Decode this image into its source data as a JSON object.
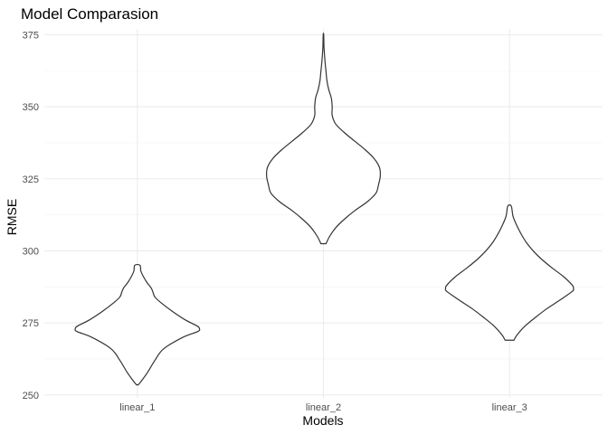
{
  "chart_data": {
    "type": "violin",
    "title": "Model Comparasion",
    "xlabel": "Models",
    "ylabel": "RMSE",
    "ylim": [
      249,
      377
    ],
    "yticks": [
      250,
      275,
      300,
      325,
      350,
      375
    ],
    "categories": [
      "linear_1",
      "linear_2",
      "linear_3"
    ],
    "grid": true,
    "legend": "none",
    "colors": {
      "outline": "#333333",
      "fill": "#ffffff",
      "grid": "#ebebeb"
    },
    "series": [
      {
        "category": "linear_1",
        "profile": [
          [
            253.5,
            0.01
          ],
          [
            255,
            0.05
          ],
          [
            258,
            0.12
          ],
          [
            262,
            0.2
          ],
          [
            266,
            0.3
          ],
          [
            270,
            0.52
          ],
          [
            272,
            0.69
          ],
          [
            273,
            0.71
          ],
          [
            274,
            0.68
          ],
          [
            276,
            0.55
          ],
          [
            279,
            0.4
          ],
          [
            282,
            0.27
          ],
          [
            284,
            0.2
          ],
          [
            285.5,
            0.18
          ],
          [
            287,
            0.16
          ],
          [
            289,
            0.11
          ],
          [
            291,
            0.07
          ],
          [
            293,
            0.04
          ],
          [
            295,
            0.03
          ]
        ]
      },
      {
        "category": "linear_2",
        "profile": [
          [
            302.5,
            0.03
          ],
          [
            305,
            0.07
          ],
          [
            308,
            0.14
          ],
          [
            311,
            0.24
          ],
          [
            314,
            0.36
          ],
          [
            317,
            0.5
          ],
          [
            320,
            0.6
          ],
          [
            323,
            0.63
          ],
          [
            326,
            0.65
          ],
          [
            329,
            0.64
          ],
          [
            332,
            0.58
          ],
          [
            335,
            0.48
          ],
          [
            338,
            0.36
          ],
          [
            341,
            0.24
          ],
          [
            344,
            0.14
          ],
          [
            347,
            0.1
          ],
          [
            350,
            0.1
          ],
          [
            353,
            0.09
          ],
          [
            356,
            0.06
          ],
          [
            359,
            0.04
          ],
          [
            362,
            0.03
          ],
          [
            365,
            0.02
          ],
          [
            368,
            0.012
          ],
          [
            371,
            0.006
          ],
          [
            375,
            0.003
          ]
        ]
      },
      {
        "category": "linear_3",
        "profile": [
          [
            269,
            0.05
          ],
          [
            271,
            0.09
          ],
          [
            274,
            0.18
          ],
          [
            277,
            0.3
          ],
          [
            280,
            0.43
          ],
          [
            283,
            0.58
          ],
          [
            286,
            0.72
          ],
          [
            287,
            0.73
          ],
          [
            288,
            0.72
          ],
          [
            291,
            0.62
          ],
          [
            294,
            0.49
          ],
          [
            297,
            0.37
          ],
          [
            300,
            0.27
          ],
          [
            303,
            0.19
          ],
          [
            306,
            0.13
          ],
          [
            309,
            0.08
          ],
          [
            312,
            0.04
          ],
          [
            315.5,
            0.02
          ]
        ]
      }
    ]
  }
}
